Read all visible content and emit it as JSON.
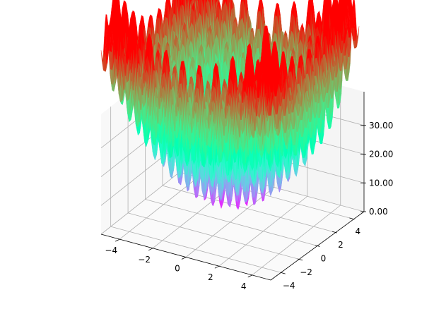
{
  "chart_data": {
    "type": "surface3d",
    "function": "rastrigin",
    "colormap": "rainbow",
    "x": {
      "min": -5.12,
      "max": 5.12,
      "ticks": [
        -4,
        -2,
        0,
        2,
        4
      ],
      "tick_labels": [
        "−4",
        "−2",
        "0",
        "2",
        "4"
      ]
    },
    "y": {
      "min": -5.12,
      "max": 5.12,
      "ticks": [
        -4,
        -2,
        0,
        2,
        4
      ],
      "tick_labels": [
        "−4",
        "−2",
        "0",
        "2",
        "4"
      ]
    },
    "z": {
      "min": 0,
      "max": 40,
      "ticks": [
        0,
        10,
        20,
        30
      ],
      "tick_labels": [
        "0.00",
        "10.00",
        "20.00",
        "30.00"
      ]
    },
    "grid": true,
    "title": "",
    "xlabel": "",
    "ylabel": "",
    "zlabel": ""
  }
}
